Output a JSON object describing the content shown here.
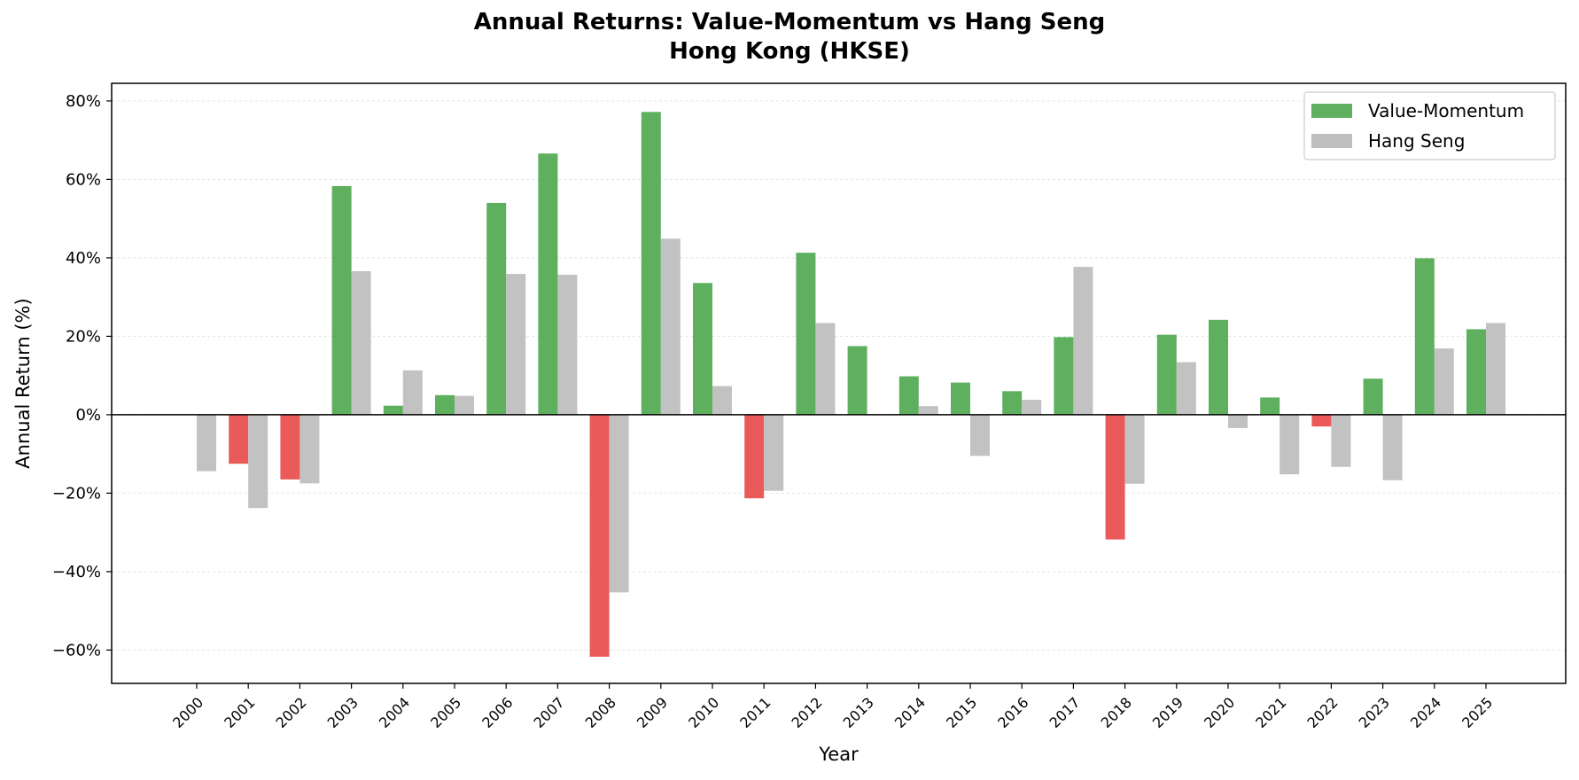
{
  "chart_data": {
    "type": "bar",
    "title_line1": "Annual Returns: Value-Momentum vs Hang Seng",
    "title_line2": "Hong Kong (HKSE)",
    "xlabel": "Year",
    "ylabel": "Annual Return (%)",
    "ylim": [
      -68.5,
      84.5
    ],
    "yticks": [
      -60,
      -40,
      -20,
      0,
      20,
      40,
      60,
      80
    ],
    "ytick_labels": [
      "−60%",
      "−40%",
      "−20%",
      "0%",
      "20%",
      "40%",
      "60%",
      "80%"
    ],
    "categories": [
      "2000",
      "2001",
      "2002",
      "2003",
      "2004",
      "2005",
      "2006",
      "2007",
      "2008",
      "2009",
      "2010",
      "2011",
      "2012",
      "2013",
      "2014",
      "2015",
      "2016",
      "2017",
      "2018",
      "2019",
      "2020",
      "2021",
      "2022",
      "2023",
      "2024",
      "2025"
    ],
    "series": [
      {
        "name": "Value-Momentum",
        "values": [
          0,
          -12.5,
          -16.5,
          58.3,
          2.3,
          5.0,
          54.0,
          66.6,
          -61.7,
          77.2,
          33.6,
          -21.3,
          41.3,
          17.5,
          9.8,
          8.2,
          6.0,
          19.8,
          -31.8,
          20.4,
          24.2,
          4.4,
          -3.0,
          9.2,
          39.9,
          21.8
        ],
        "color_positive": "#4ca64c",
        "color_negative": "#e84848"
      },
      {
        "name": "Hang Seng",
        "values": [
          -14.4,
          -23.8,
          -17.5,
          36.6,
          11.3,
          4.8,
          35.9,
          35.7,
          -45.3,
          44.9,
          7.3,
          -19.4,
          23.4,
          0,
          2.2,
          -10.5,
          3.8,
          37.7,
          -17.6,
          13.4,
          -3.4,
          -15.2,
          -13.3,
          -16.7,
          16.9,
          23.4
        ],
        "color": "#bfbfbf"
      }
    ],
    "grid": true,
    "legend_position": "upper-right"
  }
}
